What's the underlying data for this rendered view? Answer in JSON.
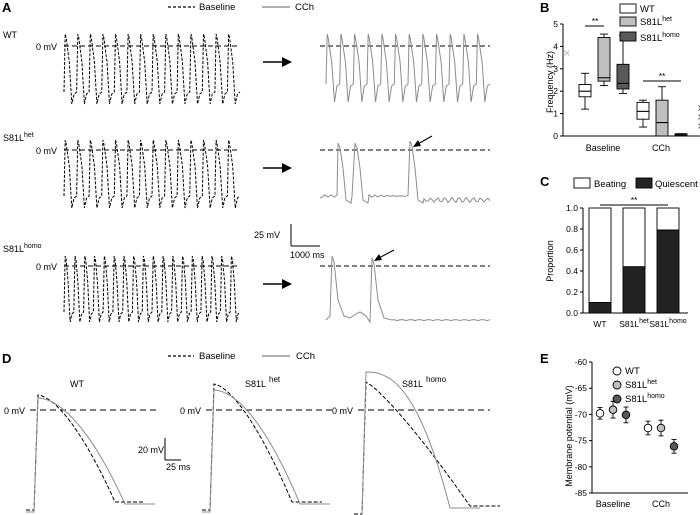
{
  "panels": {
    "A": {
      "label": "A",
      "legend": {
        "baseline": "Baseline",
        "cch": "CCh"
      },
      "rows": [
        {
          "name": "WT",
          "sup": "",
          "zero": "0 mV"
        },
        {
          "name": "S81L",
          "sup": "het",
          "zero": "0 mV"
        },
        {
          "name": "S81L",
          "sup": "homo",
          "zero": "0 mV"
        }
      ],
      "scalebar": {
        "v": "25 mV",
        "h": "1000 ms"
      }
    },
    "B": {
      "label": "B",
      "ylabel": "Frequency (Hz)",
      "yticks": [
        "0",
        "1",
        "2",
        "3",
        "4",
        "5"
      ],
      "groups": [
        "Baseline",
        "CCh"
      ],
      "legend": [
        {
          "name": "WT",
          "sup": "",
          "color": "#ffffff"
        },
        {
          "name": "S81L",
          "sup": "het",
          "color": "#bfbfbf"
        },
        {
          "name": "S81L",
          "sup": "homo",
          "color": "#595959"
        }
      ],
      "sig": [
        "**",
        "**"
      ]
    },
    "C": {
      "label": "C",
      "legend": {
        "beating": "Beating",
        "quiescent": "Quiescent"
      },
      "ylabel": "Proportion",
      "yticks": [
        "0.0",
        "0.2",
        "0.4",
        "0.6",
        "0.8",
        "1.0"
      ],
      "sig": "**",
      "bars": [
        {
          "name": "WT",
          "sup": ""
        },
        {
          "name": "S81L",
          "sup": "het"
        },
        {
          "name": "S81L",
          "sup": "homo"
        }
      ]
    },
    "D": {
      "label": "D",
      "legend": {
        "baseline": "Baseline",
        "cch": "CCh"
      },
      "traces": [
        {
          "name": "WT",
          "sup": ""
        },
        {
          "name": "S81L",
          "sup": "het"
        },
        {
          "name": "S81L",
          "sup": "homo"
        }
      ],
      "zero": "0 mV",
      "scalebar": {
        "v": "20 mV",
        "h": "25 ms"
      }
    },
    "E": {
      "label": "E",
      "ylabel": "Membrane potential (mV)",
      "yticks": [
        "-60",
        "-65",
        "-70",
        "-75",
        "-80",
        "-85"
      ],
      "groups": [
        "Baseline",
        "CCh"
      ],
      "legend": [
        {
          "name": "WT",
          "sup": "",
          "color": "#ffffff"
        },
        {
          "name": "S81L",
          "sup": "het",
          "color": "#bfbfbf"
        },
        {
          "name": "S81L",
          "sup": "homo",
          "color": "#595959"
        }
      ]
    }
  },
  "chart_data": [
    {
      "type": "box",
      "panel": "B",
      "ylabel": "Frequency (Hz)",
      "ylim": [
        0,
        5
      ],
      "categories": [
        "Baseline",
        "CCh"
      ],
      "series": [
        {
          "name": "WT",
          "boxes": [
            {
              "group": "Baseline",
              "min": 1.2,
              "q1": 1.75,
              "median": 2.0,
              "q3": 2.3,
              "max": 2.8,
              "outliers": [
                3.7
              ]
            },
            {
              "group": "CCh",
              "min": 0.4,
              "q1": 0.75,
              "median": 1.1,
              "q3": 1.5,
              "max": 1.6,
              "outliers": []
            }
          ]
        },
        {
          "name": "S81L het",
          "boxes": [
            {
              "group": "Baseline",
              "min": 2.25,
              "q1": 2.45,
              "median": 2.6,
              "q3": 4.4,
              "max": 4.55,
              "outliers": []
            },
            {
              "group": "CCh",
              "min": 0.0,
              "q1": 0.0,
              "median": 0.6,
              "q3": 1.6,
              "max": 2.2,
              "outliers": []
            }
          ]
        },
        {
          "name": "S81L homo",
          "boxes": [
            {
              "group": "Baseline",
              "min": 1.9,
              "q1": 2.1,
              "median": 2.35,
              "q3": 3.2,
              "max": 4.5,
              "outliers": []
            },
            {
              "group": "CCh",
              "min": 0.0,
              "q1": 0.0,
              "median": 0.05,
              "q3": 0.1,
              "max": 0.1,
              "outliers": [
                1.25,
                0.85,
                0.45
              ]
            }
          ]
        }
      ]
    },
    {
      "type": "bar",
      "panel": "C",
      "stacked": true,
      "ylabel": "Proportion",
      "ylim": [
        0,
        1
      ],
      "categories": [
        "WT",
        "S81L het",
        "S81L homo"
      ],
      "series": [
        {
          "name": "Quiescent",
          "values": [
            0.1,
            0.44,
            0.79
          ]
        },
        {
          "name": "Beating",
          "values": [
            0.9,
            0.56,
            0.21
          ]
        }
      ]
    },
    {
      "type": "scatter",
      "panel": "E",
      "ylabel": "Membrane potential (mV)",
      "ylim": [
        -85,
        -60
      ],
      "categories": [
        "Baseline",
        "CCh"
      ],
      "series": [
        {
          "name": "WT",
          "values": [
            -69.8,
            -72.6
          ],
          "err": [
            1.1,
            1.3
          ]
        },
        {
          "name": "S81L het",
          "values": [
            -69.1,
            -72.6
          ],
          "err": [
            1.6,
            1.5
          ]
        },
        {
          "name": "S81L homo",
          "values": [
            -70.1,
            -76.1
          ],
          "err": [
            1.5,
            1.3
          ]
        }
      ]
    }
  ]
}
